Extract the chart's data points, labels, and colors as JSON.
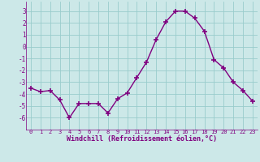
{
  "x": [
    0,
    1,
    2,
    3,
    4,
    5,
    6,
    7,
    8,
    9,
    10,
    11,
    12,
    13,
    14,
    15,
    16,
    17,
    18,
    19,
    20,
    21,
    22,
    23
  ],
  "y": [
    -3.5,
    -3.8,
    -3.7,
    -4.5,
    -6.0,
    -4.8,
    -4.8,
    -4.8,
    -5.6,
    -4.4,
    -3.9,
    -2.6,
    -1.3,
    0.6,
    2.1,
    3.0,
    3.0,
    2.4,
    1.3,
    -1.1,
    -1.8,
    -3.0,
    -3.7,
    -4.6
  ],
  "line_color": "#800080",
  "marker": "+",
  "bg_color": "#cce8e8",
  "grid_color": "#99cccc",
  "xlabel": "Windchill (Refroidissement éolien,°C)",
  "xlabel_color": "#800080",
  "tick_color": "#800080",
  "ylim": [
    -7,
    3.8
  ],
  "yticks": [
    -6,
    -5,
    -4,
    -3,
    -2,
    -1,
    0,
    1,
    2,
    3
  ],
  "xticks": [
    0,
    1,
    2,
    3,
    4,
    5,
    6,
    7,
    8,
    9,
    10,
    11,
    12,
    13,
    14,
    15,
    16,
    17,
    18,
    19,
    20,
    21,
    22,
    23
  ],
  "spine_color": "#800080",
  "linewidth": 1.0,
  "markersize": 4,
  "markeredgewidth": 1.2
}
